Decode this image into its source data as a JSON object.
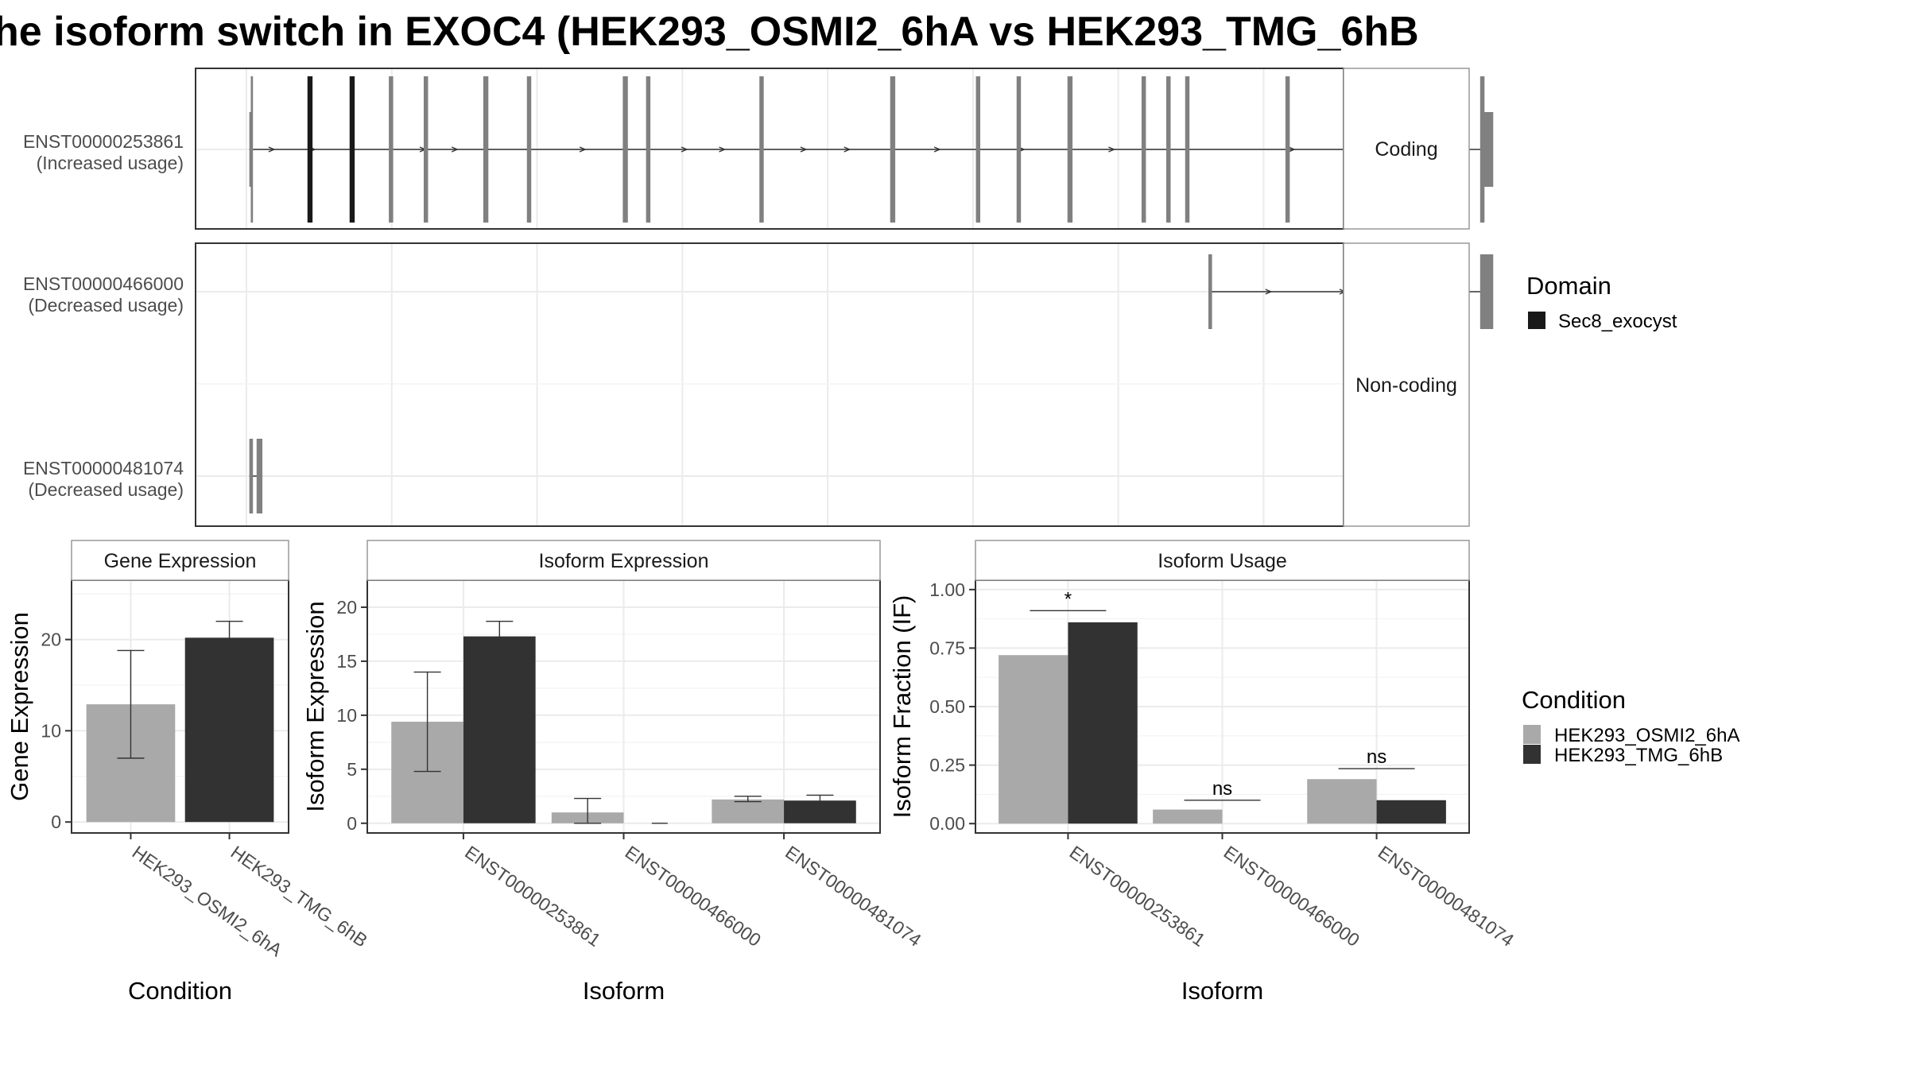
{
  "title": "he isoform switch in EXOC4 (HEK293_OSMI2_6hA vs HEK293_TMG_6hB",
  "colors": {
    "cond_a": "#a9a9a9",
    "cond_b": "#323232",
    "exon": "#808080",
    "domain": "#191919",
    "grid": "#ebebeb",
    "panel_border": "#333333",
    "strip_border": "#999999"
  },
  "structure": {
    "groups": [
      {
        "label": "Coding",
        "rows": [
          "ENST00000253861"
        ]
      },
      {
        "label": "Non-coding",
        "rows": [
          "ENST00000466000",
          "ENST00000481074"
        ]
      }
    ],
    "rows": [
      {
        "id": "ENST00000253861",
        "line1": "ENST00000253861",
        "line2": "(Increased usage)",
        "start": 0.2,
        "end": 85.3,
        "arrows": [
          1.8,
          4.6,
          12.2,
          14.4,
          23.2,
          30.2,
          32.8,
          38.4,
          41.4,
          47.6,
          53.4,
          59.6,
          72.0,
          81.2
        ],
        "exons": [
          {
            "s": 0.2,
            "e": 0.35,
            "h": "utr"
          },
          {
            "s": 0.3,
            "e": 0.45,
            "h": "cds"
          },
          {
            "s": 4.2,
            "e": 4.55,
            "h": "cds",
            "domain": true
          },
          {
            "s": 7.1,
            "e": 7.45,
            "h": "cds",
            "domain": true
          },
          {
            "s": 9.8,
            "e": 10.1,
            "h": "cds"
          },
          {
            "s": 12.2,
            "e": 12.5,
            "h": "cds"
          },
          {
            "s": 16.3,
            "e": 16.65,
            "h": "cds"
          },
          {
            "s": 19.3,
            "e": 19.6,
            "h": "cds"
          },
          {
            "s": 25.9,
            "e": 26.25,
            "h": "cds"
          },
          {
            "s": 27.5,
            "e": 27.8,
            "h": "cds"
          },
          {
            "s": 35.3,
            "e": 35.6,
            "h": "cds"
          },
          {
            "s": 44.3,
            "e": 44.65,
            "h": "cds"
          },
          {
            "s": 50.2,
            "e": 50.5,
            "h": "cds"
          },
          {
            "s": 53.0,
            "e": 53.3,
            "h": "cds"
          },
          {
            "s": 56.5,
            "e": 56.85,
            "h": "cds"
          },
          {
            "s": 61.6,
            "e": 61.9,
            "h": "cds"
          },
          {
            "s": 63.3,
            "e": 63.6,
            "h": "cds"
          },
          {
            "s": 64.6,
            "e": 64.9,
            "h": "cds"
          },
          {
            "s": 71.5,
            "e": 71.8,
            "h": "cds"
          },
          {
            "s": 84.9,
            "e": 85.2,
            "h": "cds"
          },
          {
            "s": 85.0,
            "e": 85.8,
            "h": "utr"
          }
        ]
      },
      {
        "id": "ENST00000466000",
        "line1": "ENST00000466000",
        "line2": "(Decreased usage)",
        "start": 66.2,
        "end": 85.3,
        "arrows": [
          70.4,
          75.5
        ],
        "exons": [
          {
            "s": 66.2,
            "e": 66.45,
            "h": "utr"
          },
          {
            "s": 84.9,
            "e": 85.8,
            "h": "utr"
          }
        ]
      },
      {
        "id": "ENST00000481074",
        "line1": "ENST00000481074",
        "line2": "(Decreased usage)",
        "start": 0.2,
        "end": 1.1,
        "arrows": [],
        "exons": [
          {
            "s": 0.2,
            "e": 0.45,
            "h": "utr"
          },
          {
            "s": 0.7,
            "e": 1.1,
            "h": "utr"
          }
        ]
      }
    ],
    "xlim": [
      -3.5,
      75.5
    ],
    "gridlines": [
      0,
      10,
      20,
      30,
      40,
      50,
      60,
      70
    ]
  },
  "domain_legend": {
    "title": "Domain",
    "items": [
      {
        "label": "Sec8_exocyst",
        "color": "#191919"
      }
    ]
  },
  "condition_legend": {
    "title": "Condition",
    "items": [
      {
        "label": "HEK293_OSMI2_6hA",
        "color": "#a9a9a9"
      },
      {
        "label": "HEK293_TMG_6hB",
        "color": "#323232"
      }
    ]
  },
  "chart_data": [
    {
      "type": "bar",
      "title": "Gene Expression",
      "xlabel": "Condition",
      "ylabel": "Gene Expression",
      "categories": [
        "HEK293_OSMI2_6hA",
        "HEK293_TMG_6hB"
      ],
      "values": [
        12.9,
        20.2
      ],
      "error_low": [
        7.0,
        18.5
      ],
      "error_high": [
        18.8,
        22.0
      ],
      "colors": [
        "#a9a9a9",
        "#323232"
      ],
      "ylim": [
        -1.2,
        26.5
      ],
      "yticks": [
        0,
        10,
        20
      ]
    },
    {
      "type": "bar",
      "title": "Isoform Expression",
      "xlabel": "Isoform",
      "ylabel": "Isoform Expression",
      "categories": [
        "ENST00000253861",
        "ENST00000466000",
        "ENST00000481074"
      ],
      "series": [
        {
          "name": "HEK293_OSMI2_6hA",
          "values": [
            9.4,
            1.0,
            2.2
          ],
          "error_low": [
            4.8,
            0.0,
            2.0
          ],
          "error_high": [
            14.0,
            2.3,
            2.5
          ]
        },
        {
          "name": "HEK293_TMG_6hB",
          "values": [
            17.3,
            0.0,
            2.1
          ],
          "error_low": [
            16.1,
            0.0,
            1.6
          ],
          "error_high": [
            18.7,
            0.0,
            2.6
          ]
        }
      ],
      "ylim": [
        -0.9,
        22.5
      ],
      "yticks": [
        0,
        5,
        10,
        15,
        20
      ]
    },
    {
      "type": "bar",
      "title": "Isoform Usage",
      "xlabel": "Isoform",
      "ylabel": "Isoform Fraction (IF)",
      "categories": [
        "ENST00000253861",
        "ENST00000466000",
        "ENST00000481074"
      ],
      "series": [
        {
          "name": "HEK293_OSMI2_6hA",
          "values": [
            0.72,
            0.06,
            0.19
          ]
        },
        {
          "name": "HEK293_TMG_6hB",
          "values": [
            0.86,
            0.0,
            0.1
          ]
        }
      ],
      "significance": [
        {
          "label": "*",
          "y": 0.91
        },
        {
          "label": "ns",
          "y": 0.1
        },
        {
          "label": "ns",
          "y": 0.235
        }
      ],
      "ylim": [
        -0.04,
        1.04
      ],
      "yticks": [
        0.0,
        0.25,
        0.5,
        0.75,
        1.0
      ],
      "ytick_labels": [
        "0.00",
        "0.25",
        "0.50",
        "0.75",
        "1.00"
      ]
    }
  ]
}
